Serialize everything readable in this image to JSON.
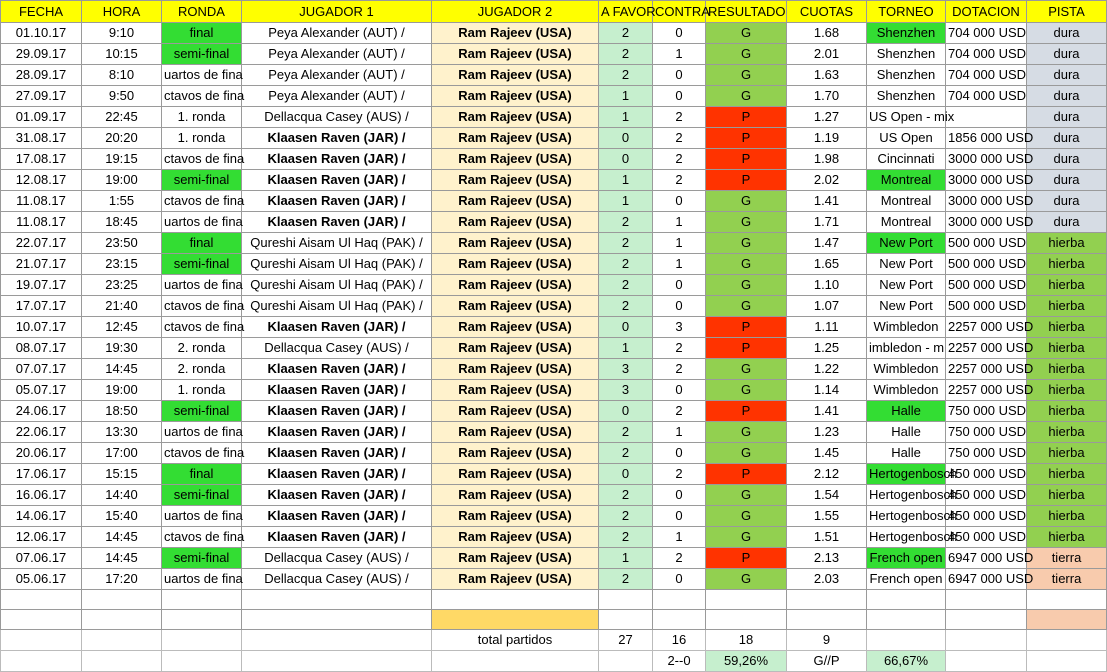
{
  "headers": [
    "FECHA",
    "HORA",
    "RONDA",
    "JUGADOR 1",
    "JUGADOR 2",
    "A FAVOR",
    "CONTRA",
    "RESULTADO",
    "CUOTAS",
    "TORNEO",
    "DOTACION",
    "PISTA"
  ],
  "rows": [
    {
      "fecha": "01.10.17",
      "hora": "9:10",
      "ronda": "final",
      "ronda_hl": true,
      "j1": "Peya Alexander (AUT) /",
      "j1_bold": false,
      "j2": "Ram Rajeev (USA)",
      "favor": "2",
      "contra": "0",
      "res": "G",
      "cuota": "1.68",
      "torneo": "Shenzhen",
      "torneo_hl": true,
      "dot": "704 000 USD",
      "pista": "dura"
    },
    {
      "fecha": "29.09.17",
      "hora": "10:15",
      "ronda": "semi-final",
      "ronda_hl": true,
      "j1": "Peya Alexander (AUT) /",
      "j1_bold": false,
      "j2": "Ram Rajeev (USA)",
      "favor": "2",
      "contra": "1",
      "res": "G",
      "cuota": "2.01",
      "torneo": "Shenzhen",
      "torneo_hl": false,
      "dot": "704 000 USD",
      "pista": "dura"
    },
    {
      "fecha": "28.09.17",
      "hora": "8:10",
      "ronda": "uartos de fina",
      "ronda_hl": false,
      "j1": "Peya Alexander (AUT) /",
      "j1_bold": false,
      "j2": "Ram Rajeev (USA)",
      "favor": "2",
      "contra": "0",
      "res": "G",
      "cuota": "1.63",
      "torneo": "Shenzhen",
      "torneo_hl": false,
      "dot": "704 000 USD",
      "pista": "dura"
    },
    {
      "fecha": "27.09.17",
      "hora": "9:50",
      "ronda": "ctavos de fina",
      "ronda_hl": false,
      "j1": "Peya Alexander (AUT) /",
      "j1_bold": false,
      "j2": "Ram Rajeev (USA)",
      "favor": "1",
      "contra": "0",
      "res": "G",
      "cuota": "1.70",
      "torneo": "Shenzhen",
      "torneo_hl": false,
      "dot": "704 000 USD",
      "pista": "dura"
    },
    {
      "fecha": "01.09.17",
      "hora": "22:45",
      "ronda": "1. ronda",
      "ronda_hl": false,
      "j1": "Dellacqua Casey (AUS) /",
      "j1_bold": false,
      "j2": "Ram Rajeev (USA)",
      "favor": "1",
      "contra": "2",
      "res": "P",
      "cuota": "1.27",
      "torneo": "US Open - mix",
      "torneo_hl": false,
      "dot": "",
      "pista": "dura"
    },
    {
      "fecha": "31.08.17",
      "hora": "20:20",
      "ronda": "1. ronda",
      "ronda_hl": false,
      "j1": "Klaasen Raven (JAR) /",
      "j1_bold": true,
      "j2": "Ram Rajeev (USA)",
      "favor": "0",
      "contra": "2",
      "res": "P",
      "cuota": "1.19",
      "torneo": "US Open",
      "torneo_hl": false,
      "dot": "1856 000 USD",
      "pista": "dura"
    },
    {
      "fecha": "17.08.17",
      "hora": "19:15",
      "ronda": "ctavos de fina",
      "ronda_hl": false,
      "j1": "Klaasen Raven (JAR) /",
      "j1_bold": true,
      "j2": "Ram Rajeev (USA)",
      "favor": "0",
      "contra": "2",
      "res": "P",
      "cuota": "1.98",
      "torneo": "Cincinnati",
      "torneo_hl": false,
      "dot": "3000 000 USD",
      "pista": "dura"
    },
    {
      "fecha": "12.08.17",
      "hora": "19:00",
      "ronda": "semi-final",
      "ronda_hl": true,
      "j1": "Klaasen Raven (JAR) /",
      "j1_bold": true,
      "j2": "Ram Rajeev (USA)",
      "favor": "1",
      "contra": "2",
      "res": "P",
      "cuota": "2.02",
      "torneo": "Montreal",
      "torneo_hl": true,
      "dot": "3000 000 USD",
      "pista": "dura"
    },
    {
      "fecha": "11.08.17",
      "hora": "1:55",
      "ronda": "ctavos de fina",
      "ronda_hl": false,
      "j1": "Klaasen Raven (JAR) /",
      "j1_bold": true,
      "j2": "Ram Rajeev (USA)",
      "favor": "1",
      "contra": "0",
      "res": "G",
      "cuota": "1.41",
      "torneo": "Montreal",
      "torneo_hl": false,
      "dot": "3000 000 USD",
      "pista": "dura"
    },
    {
      "fecha": "11.08.17",
      "hora": "18:45",
      "ronda": "uartos de fina",
      "ronda_hl": false,
      "j1": "Klaasen Raven (JAR) /",
      "j1_bold": true,
      "j2": "Ram Rajeev (USA)",
      "favor": "2",
      "contra": "1",
      "res": "G",
      "cuota": "1.71",
      "torneo": "Montreal",
      "torneo_hl": false,
      "dot": "3000 000 USD",
      "pista": "dura"
    },
    {
      "fecha": "22.07.17",
      "hora": "23:50",
      "ronda": "final",
      "ronda_hl": true,
      "j1": "Qureshi Aisam Ul Haq (PAK) /",
      "j1_bold": false,
      "j2": "Ram Rajeev (USA)",
      "favor": "2",
      "contra": "1",
      "res": "G",
      "cuota": "1.47",
      "torneo": "New Port",
      "torneo_hl": true,
      "dot": "500 000 USD",
      "pista": "hierba"
    },
    {
      "fecha": "21.07.17",
      "hora": "23:15",
      "ronda": "semi-final",
      "ronda_hl": true,
      "j1": "Qureshi Aisam Ul Haq (PAK) /",
      "j1_bold": false,
      "j2": "Ram Rajeev (USA)",
      "favor": "2",
      "contra": "1",
      "res": "G",
      "cuota": "1.65",
      "torneo": "New Port",
      "torneo_hl": false,
      "dot": "500 000 USD",
      "pista": "hierba"
    },
    {
      "fecha": "19.07.17",
      "hora": "23:25",
      "ronda": "uartos de fina",
      "ronda_hl": false,
      "j1": "Qureshi Aisam Ul Haq (PAK) /",
      "j1_bold": false,
      "j2": "Ram Rajeev (USA)",
      "favor": "2",
      "contra": "0",
      "res": "G",
      "cuota": "1.10",
      "torneo": "New Port",
      "torneo_hl": false,
      "dot": "500 000 USD",
      "pista": "hierba"
    },
    {
      "fecha": "17.07.17",
      "hora": "21:40",
      "ronda": "ctavos de fina",
      "ronda_hl": false,
      "j1": "Qureshi Aisam Ul Haq (PAK) /",
      "j1_bold": false,
      "j2": "Ram Rajeev (USA)",
      "favor": "2",
      "contra": "0",
      "res": "G",
      "cuota": "1.07",
      "torneo": "New Port",
      "torneo_hl": false,
      "dot": "500 000 USD",
      "pista": "hierba"
    },
    {
      "fecha": "10.07.17",
      "hora": "12:45",
      "ronda": "ctavos de fina",
      "ronda_hl": false,
      "j1": "Klaasen Raven (JAR) /",
      "j1_bold": true,
      "j2": "Ram Rajeev (USA)",
      "favor": "0",
      "contra": "3",
      "res": "P",
      "cuota": "1.11",
      "torneo": "Wimbledon",
      "torneo_hl": false,
      "dot": "2257 000 USD",
      "pista": "hierba"
    },
    {
      "fecha": "08.07.17",
      "hora": "19:30",
      "ronda": "2. ronda",
      "ronda_hl": false,
      "j1": "Dellacqua Casey (AUS) /",
      "j1_bold": false,
      "j2": "Ram Rajeev (USA)",
      "favor": "1",
      "contra": "2",
      "res": "P",
      "cuota": "1.25",
      "torneo": "imbledon - m",
      "torneo_hl": false,
      "dot": "2257 000 USD",
      "pista": "hierba"
    },
    {
      "fecha": "07.07.17",
      "hora": "14:45",
      "ronda": "2. ronda",
      "ronda_hl": false,
      "j1": "Klaasen Raven (JAR) /",
      "j1_bold": true,
      "j2": "Ram Rajeev (USA)",
      "favor": "3",
      "contra": "2",
      "res": "G",
      "cuota": "1.22",
      "torneo": "Wimbledon",
      "torneo_hl": false,
      "dot": "2257 000 USD",
      "pista": "hierba"
    },
    {
      "fecha": "05.07.17",
      "hora": "19:00",
      "ronda": "1. ronda",
      "ronda_hl": false,
      "j1": "Klaasen Raven (JAR) /",
      "j1_bold": true,
      "j2": "Ram Rajeev (USA)",
      "favor": "3",
      "contra": "0",
      "res": "G",
      "cuota": "1.14",
      "torneo": "Wimbledon",
      "torneo_hl": false,
      "dot": "2257 000 USD",
      "pista": "hierba"
    },
    {
      "fecha": "24.06.17",
      "hora": "18:50",
      "ronda": "semi-final",
      "ronda_hl": true,
      "j1": "Klaasen Raven (JAR) /",
      "j1_bold": true,
      "j2": "Ram Rajeev (USA)",
      "favor": "0",
      "contra": "2",
      "res": "P",
      "cuota": "1.41",
      "torneo": "Halle",
      "torneo_hl": true,
      "dot": "750 000 USD",
      "pista": "hierba"
    },
    {
      "fecha": "22.06.17",
      "hora": "13:30",
      "ronda": "uartos de fina",
      "ronda_hl": false,
      "j1": "Klaasen Raven (JAR) /",
      "j1_bold": true,
      "j2": "Ram Rajeev (USA)",
      "favor": "2",
      "contra": "1",
      "res": "G",
      "cuota": "1.23",
      "torneo": "Halle",
      "torneo_hl": false,
      "dot": "750 000 USD",
      "pista": "hierba"
    },
    {
      "fecha": "20.06.17",
      "hora": "17:00",
      "ronda": "ctavos de fina",
      "ronda_hl": false,
      "j1": "Klaasen Raven (JAR) /",
      "j1_bold": true,
      "j2": "Ram Rajeev (USA)",
      "favor": "2",
      "contra": "0",
      "res": "G",
      "cuota": "1.45",
      "torneo": "Halle",
      "torneo_hl": false,
      "dot": "750 000 USD",
      "pista": "hierba"
    },
    {
      "fecha": "17.06.17",
      "hora": "15:15",
      "ronda": "final",
      "ronda_hl": true,
      "j1": "Klaasen Raven (JAR) /",
      "j1_bold": true,
      "j2": "Ram Rajeev (USA)",
      "favor": "0",
      "contra": "2",
      "res": "P",
      "cuota": "2.12",
      "torneo": "Hertogenbosch",
      "torneo_hl": true,
      "dot": "450 000 USD",
      "pista": "hierba"
    },
    {
      "fecha": "16.06.17",
      "hora": "14:40",
      "ronda": "semi-final",
      "ronda_hl": true,
      "j1": "Klaasen Raven (JAR) /",
      "j1_bold": true,
      "j2": "Ram Rajeev (USA)",
      "favor": "2",
      "contra": "0",
      "res": "G",
      "cuota": "1.54",
      "torneo": "Hertogenbosch",
      "torneo_hl": false,
      "dot": "450 000 USD",
      "pista": "hierba"
    },
    {
      "fecha": "14.06.17",
      "hora": "15:40",
      "ronda": "uartos de fina",
      "ronda_hl": false,
      "j1": "Klaasen Raven (JAR) /",
      "j1_bold": true,
      "j2": "Ram Rajeev (USA)",
      "favor": "2",
      "contra": "0",
      "res": "G",
      "cuota": "1.55",
      "torneo": "Hertogenbosch",
      "torneo_hl": false,
      "dot": "450 000 USD",
      "pista": "hierba"
    },
    {
      "fecha": "12.06.17",
      "hora": "14:45",
      "ronda": "ctavos de fina",
      "ronda_hl": false,
      "j1": "Klaasen Raven (JAR) /",
      "j1_bold": true,
      "j2": "Ram Rajeev (USA)",
      "favor": "2",
      "contra": "1",
      "res": "G",
      "cuota": "1.51",
      "torneo": "Hertogenbosch",
      "torneo_hl": false,
      "dot": "450 000 USD",
      "pista": "hierba"
    },
    {
      "fecha": "07.06.17",
      "hora": "14:45",
      "ronda": "semi-final",
      "ronda_hl": true,
      "j1": "Dellacqua Casey (AUS) /",
      "j1_bold": false,
      "j2": "Ram Rajeev (USA)",
      "favor": "1",
      "contra": "2",
      "res": "P",
      "cuota": "2.13",
      "torneo": "French open",
      "torneo_hl": true,
      "dot": "6947 000 USD",
      "pista": "tierra"
    },
    {
      "fecha": "05.06.17",
      "hora": "17:20",
      "ronda": "uartos de fina",
      "ronda_hl": false,
      "j1": "Dellacqua Casey (AUS) /",
      "j1_bold": false,
      "j2": "Ram Rajeev (USA)",
      "favor": "2",
      "contra": "0",
      "res": "G",
      "cuota": "2.03",
      "torneo": "French open",
      "torneo_hl": false,
      "dot": "6947 000 USD",
      "pista": "tierra"
    }
  ],
  "summary": {
    "total_label": "total partidos",
    "total": "27",
    "ganados": "16",
    "perdidos_count": "18",
    "otros": "9",
    "score_label": "2--0",
    "pct1": "59,26%",
    "gp_label": "G//P",
    "pct2": "66,67%"
  },
  "colors": {
    "header": "#ffff00",
    "win": "#92d050",
    "loss": "#ff3300",
    "highlight": "#33dd33",
    "player2_bg": "#fff2cc",
    "score_bg": "#c6efce",
    "dura": "#d6dce4",
    "hierba": "#92d050",
    "tierra": "#f8cbad"
  }
}
